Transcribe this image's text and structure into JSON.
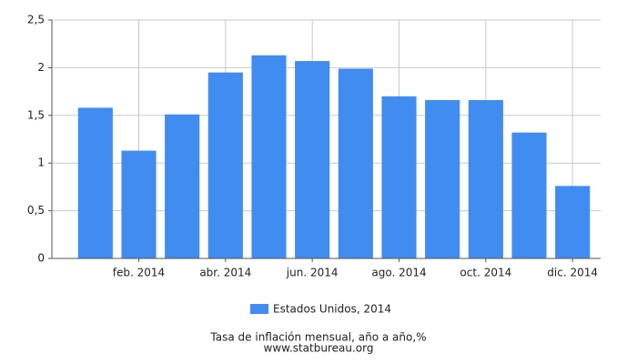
{
  "chart_data": {
    "type": "bar",
    "title": "Tasa de inflación mensual, año a año,%",
    "source": "www.statbureau.org",
    "categories": [
      null,
      "feb. 2014",
      null,
      "abr. 2014",
      null,
      "jun. 2014",
      null,
      "ago. 2014",
      null,
      "oct. 2014",
      null,
      "dic. 2014"
    ],
    "series": [
      {
        "name": "Estados Unidos, 2014",
        "color": "#418cf0",
        "values": [
          1.58,
          1.13,
          1.51,
          1.95,
          2.13,
          2.07,
          1.99,
          1.7,
          1.66,
          1.66,
          1.32,
          0.76
        ]
      }
    ],
    "ylim": [
      0,
      2.5
    ],
    "yticks": [
      0,
      {
        "value": 0.5,
        "label": "0,5"
      },
      1,
      {
        "value": 1.5,
        "label": "1,5"
      },
      2,
      {
        "value": 2.5,
        "label": "2,5"
      }
    ],
    "grid": true,
    "legend": "bottom"
  }
}
